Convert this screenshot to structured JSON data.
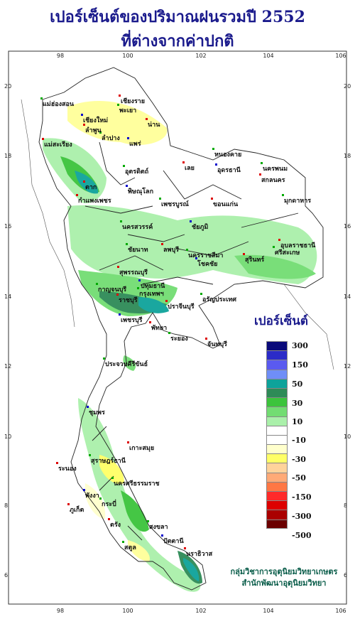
{
  "title": {
    "line1": "เปอร์เซ็นต์ของปริมาณฝนรวมปี  2552",
    "line2": "ที่ต่างจากค่าปกติ"
  },
  "axes": {
    "top_ticks": [
      "98",
      "100",
      "102",
      "104",
      "106"
    ],
    "bottom_ticks": [
      "98",
      "100",
      "102",
      "104",
      "106"
    ],
    "left_ticks": [
      "20",
      "18",
      "16",
      "14",
      "12",
      "10",
      "8",
      "6"
    ],
    "right_ticks": [
      "20",
      "18",
      "16",
      "14",
      "12",
      "10",
      "8",
      "6"
    ]
  },
  "places": [
    {
      "name": "เชียงราย"
    },
    {
      "name": "แม่ฮ่องสอน"
    },
    {
      "name": "เชียงใหม่"
    },
    {
      "name": "ลำพูน"
    },
    {
      "name": "พะเยา"
    },
    {
      "name": "น่าน"
    },
    {
      "name": "ลำปาง"
    },
    {
      "name": "แพร่"
    },
    {
      "name": "แม่สะเรียง"
    },
    {
      "name": "อุตรดิตถ์"
    },
    {
      "name": "ตาก"
    },
    {
      "name": "หนองคาย"
    },
    {
      "name": "อุดรธานี"
    },
    {
      "name": "เลย"
    },
    {
      "name": "นครพนม"
    },
    {
      "name": "สกลนคร"
    },
    {
      "name": "มุกดาหาร"
    },
    {
      "name": "พิษณุโลก"
    },
    {
      "name": "กำแพงเพชร"
    },
    {
      "name": "เพชรบูรณ์"
    },
    {
      "name": "ขอนแก่น"
    },
    {
      "name": "นครสวรรค์"
    },
    {
      "name": "ชัยภูมิ"
    },
    {
      "name": "อุบลราชธานี"
    },
    {
      "name": "ชัยนาท"
    },
    {
      "name": "ลพบุรี"
    },
    {
      "name": "นครราชสีมา"
    },
    {
      "name": "โชคชัย"
    },
    {
      "name": "สุรินทร์"
    },
    {
      "name": "ศรีสะเกษ"
    },
    {
      "name": "สุพรรณบุรี"
    },
    {
      "name": "กาญจนบุรี"
    },
    {
      "name": "ปทุมธานี"
    },
    {
      "name": "ราชบุรี"
    },
    {
      "name": "กรุงเทพฯ"
    },
    {
      "name": "ปราจีนบุรี"
    },
    {
      "name": "อรัญประเทศ"
    },
    {
      "name": "เพชรบุรี"
    },
    {
      "name": "พัทยา"
    },
    {
      "name": "ระยอง"
    },
    {
      "name": "จันทบุรี"
    },
    {
      "name": "ประจวบคีรีขันธ์"
    },
    {
      "name": "ชุมพร"
    },
    {
      "name": "เกาะสมุย"
    },
    {
      "name": "สุราษฎร์ธานี"
    },
    {
      "name": "ระนอง"
    },
    {
      "name": "นครศรีธรรมราช"
    },
    {
      "name": "พังงา"
    },
    {
      "name": "ภูเก็ต"
    },
    {
      "name": "กระบี่"
    },
    {
      "name": "ตรัง"
    },
    {
      "name": "สงขลา"
    },
    {
      "name": "ปัตตานี"
    },
    {
      "name": "นราธิวาส"
    },
    {
      "name": "สตูล"
    }
  ],
  "legend": {
    "title": "เปอร์เซ็นต์",
    "colors": [
      "#0a0a7a",
      "#2b2bc8",
      "#5a5af0",
      "#6f8ef7",
      "#0ea39a",
      "#2e8b57",
      "#3cc43c",
      "#72dd72",
      "#aaf0aa",
      "#ffffff",
      "#ffffff",
      "#ffffcc",
      "#ffff66",
      "#ffd39b",
      "#ffaa77",
      "#ff7744",
      "#ff2a2a",
      "#dd0000",
      "#aa0000",
      "#6b0000"
    ],
    "labels": [
      "300",
      "150",
      "50",
      "30",
      "10",
      "-10",
      "-30",
      "-50",
      "-150",
      "-300",
      "-500"
    ]
  },
  "credit": {
    "line1": "กลุ่มวิชาการอุตุนิยมวิทยาเกษตร",
    "line2": "สำนักพัฒนาอุตุนิยมวิทยา"
  }
}
